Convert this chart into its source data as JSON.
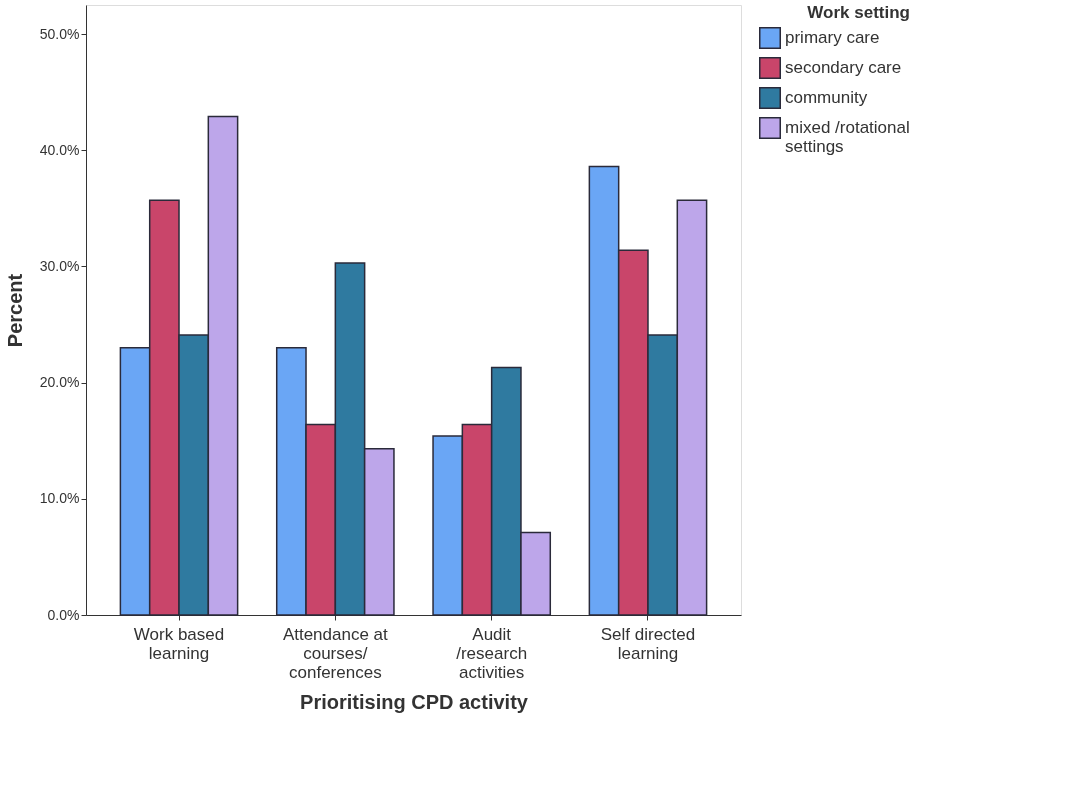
{
  "chart_data": {
    "type": "bar",
    "xlabel": "Prioritising CPD activity",
    "ylabel": "Percent",
    "legend_title": "Work setting",
    "legend": "top right",
    "categories": [
      "Work based learning",
      "Attendance at courses/ conferences",
      "Audit /research activities",
      "Self directed learning"
    ],
    "series": [
      {
        "name": "primary care",
        "color": "#6aa6f5",
        "values": [
          23.0,
          23.0,
          15.4,
          38.6
        ]
      },
      {
        "name": "secondary care",
        "color": "#c9456a",
        "values": [
          35.7,
          16.4,
          16.4,
          31.4
        ]
      },
      {
        "name": "community",
        "color": "#2f7aa0",
        "values": [
          24.1,
          30.3,
          21.3,
          24.1
        ]
      },
      {
        "name": "mixed /rotational settings",
        "color": "#bda6ea",
        "values": [
          42.9,
          14.3,
          7.1,
          35.7
        ]
      }
    ],
    "ylim": [
      0,
      52.5
    ],
    "yticks": [
      {
        "value": 0,
        "label": "0.0%"
      },
      {
        "value": 10,
        "label": "10.0%"
      },
      {
        "value": 20,
        "label": "20.0%"
      },
      {
        "value": 30,
        "label": "30.0%"
      },
      {
        "value": 40,
        "label": "40.0%"
      },
      {
        "value": 50,
        "label": "50.0%"
      }
    ],
    "grid": false
  }
}
